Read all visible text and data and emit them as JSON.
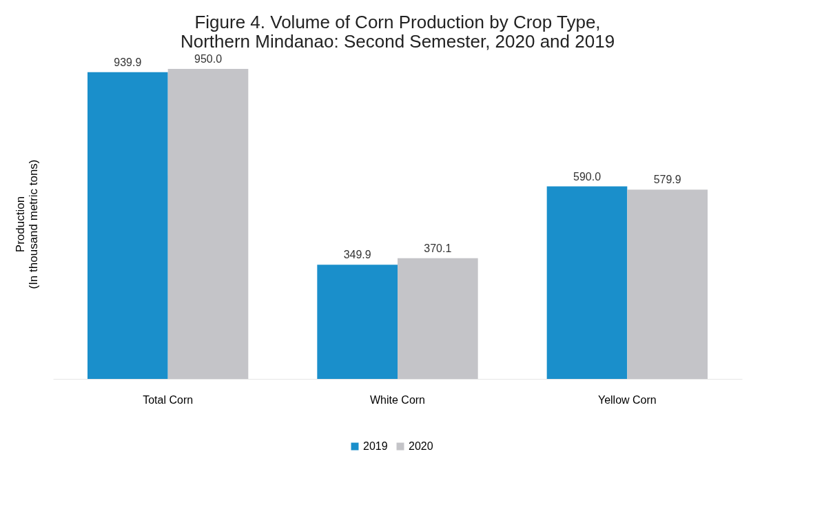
{
  "chart_data": {
    "type": "bar",
    "title": "Figure 4. Volume of Corn Production by Crop Type,\nNorthern Mindanao: Second Semester, 2020 and 2019",
    "ylabel": "Production\n(In thousand metric tons)",
    "categories": [
      "Total Corn",
      "White Corn",
      "Yellow Corn"
    ],
    "series": [
      {
        "name": "2019",
        "color": "#1a8fcb",
        "values": [
          939.9,
          349.9,
          590.0
        ],
        "value_labels": [
          "939.9",
          "349.9",
          "590.0"
        ]
      },
      {
        "name": "2020",
        "color": "#c4c4c8",
        "values": [
          950.0,
          370.1,
          579.9
        ],
        "value_labels": [
          "950.0",
          "370.1",
          "579.9"
        ]
      }
    ],
    "legend": "bottom",
    "grid": false
  }
}
